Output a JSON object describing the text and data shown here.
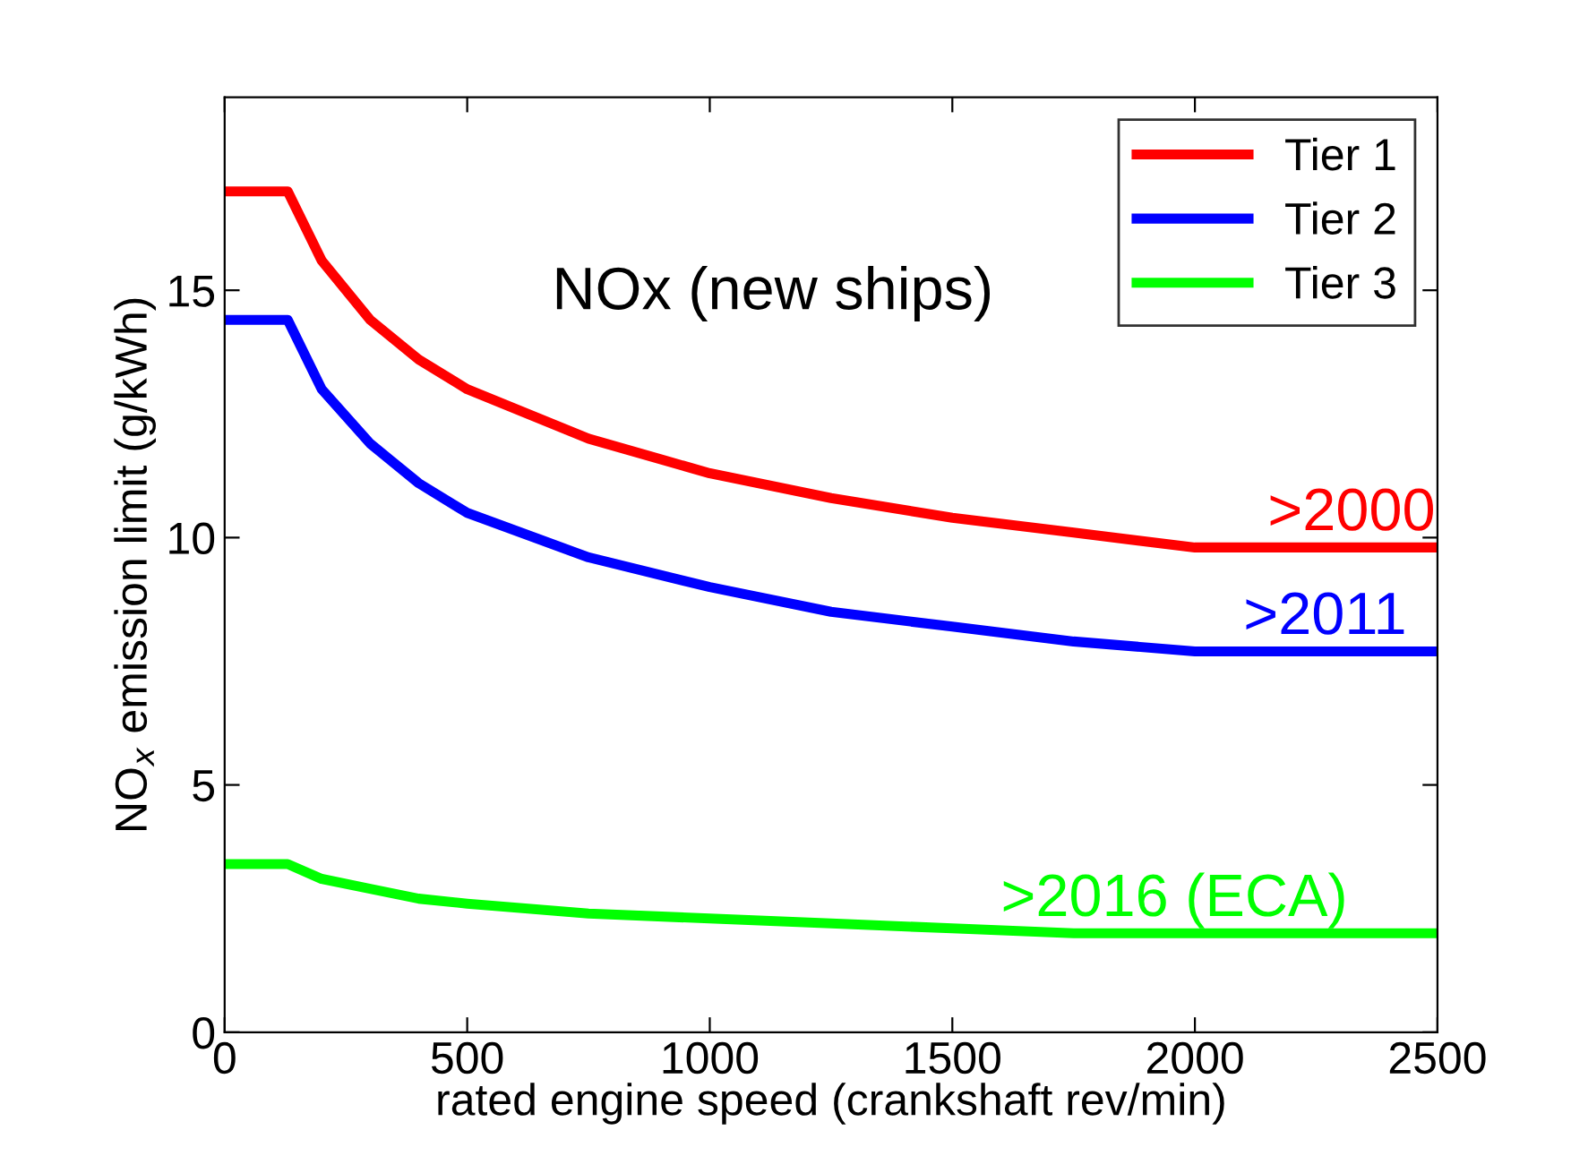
{
  "chart_data": {
    "type": "line",
    "xlabel": "rated engine speed (crankshaft rev/min)",
    "ylabel": "NO$_{x}$ emission limit (g/kWh)",
    "x": [
      0,
      130,
      200,
      300,
      400,
      500,
      750,
      1000,
      1250,
      1500,
      1750,
      2000,
      2500
    ],
    "series": [
      {
        "name": "Tier 1",
        "color": "#ff0000",
        "values": [
          17.0,
          17.0,
          15.6,
          14.4,
          13.6,
          13.0,
          12.0,
          11.3,
          10.8,
          10.4,
          10.1,
          9.8,
          9.8
        ]
      },
      {
        "name": "Tier 2",
        "color": "#0000ff",
        "values": [
          14.4,
          14.4,
          13.0,
          11.9,
          11.1,
          10.5,
          9.6,
          9.0,
          8.5,
          8.2,
          7.9,
          7.7,
          7.7
        ]
      },
      {
        "name": "Tier 3",
        "color": "#00ff00",
        "values": [
          3.4,
          3.4,
          3.1,
          2.9,
          2.7,
          2.6,
          2.4,
          2.3,
          2.2,
          2.1,
          2.0,
          2.0,
          2.0
        ]
      }
    ],
    "annotations": [
      "NOx (new ships)",
      {
        "text": ">2000",
        "x": 2150,
        "y": 9.8
      },
      {
        "text": ">2011",
        "x": 2100,
        "y": 7.7
      },
      {
        "text": ">2016 (ECA)",
        "x": 1600,
        "y": 2.0
      }
    ],
    "xlim": [
      0,
      2500
    ],
    "ylim": [
      0,
      18.9
    ],
    "xticks": [
      0,
      500,
      1000,
      1500,
      2000,
      2500
    ],
    "yticks": [
      0,
      5,
      10,
      15
    ],
    "legend": "top right",
    "grid": false,
    "marker": "none",
    "line_style": "solid"
  }
}
